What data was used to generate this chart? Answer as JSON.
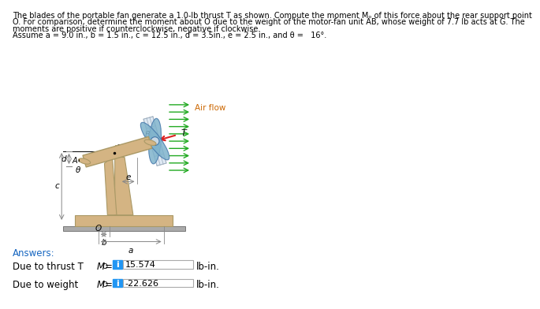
{
  "bg_color": "#ffffff",
  "title_text_line1": "The blades of the portable fan generate a 1.0-lb thrust T as shown. Compute the moment Mₒ of this force about the rear support point",
  "title_text_line2": "O. For comparison, determine the moment about O due to the weight of the motor-fan unit AB, whose weight of 7.7 lb acts at G. The",
  "title_text_line3": "moments are positive if counterclockwise, negative if clockwise.",
  "title_text_line4": "Assume a = 9.0 in., b = 1.5 in., c = 12.5 in., d = 3.5in., e = 2.5 in., and θ =   16°.",
  "answers_label": "Answers:",
  "row1_label": "Due to thrust T",
  "row1_value": "15.574",
  "row1_unit": "lb-in.",
  "row2_label": "Due to weight",
  "row2_value": "-22.626",
  "row2_unit": "lb-in.",
  "box_color": "#2196f3",
  "box_text_color": "#ffffff",
  "answer_box_bg": "#ffffff",
  "answer_box_border": "#aaaaaa",
  "text_color": "#000000",
  "answers_color": "#1565c0",
  "fan_blade_color": "#7fb3cc",
  "fan_frame_color": "#ccddee",
  "motor_color": "#d4b483",
  "stand_color": "#d4b483",
  "ground_color": "#aaaaaa",
  "arrow_green": "#22aa22",
  "arrow_red": "#dd2222",
  "dim_color": "#888888",
  "theta_deg": 16
}
